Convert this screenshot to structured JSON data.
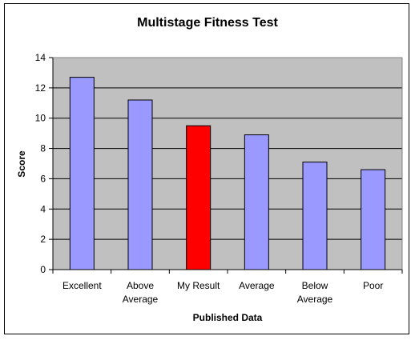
{
  "chart_data": {
    "type": "bar",
    "title": "Multistage Fitness Test",
    "xlabel": "Published Data",
    "ylabel": "Score",
    "ylim": [
      0,
      14
    ],
    "yticks": [
      0,
      2,
      4,
      6,
      8,
      10,
      12,
      14
    ],
    "grid": true,
    "legend": "none",
    "categories": [
      [
        "Excellent"
      ],
      [
        "Above",
        "Average"
      ],
      [
        "My Result"
      ],
      [
        "Average"
      ],
      [
        "Below",
        "Average"
      ],
      [
        "Poor"
      ]
    ],
    "values": [
      12.7,
      11.2,
      9.5,
      8.9,
      7.1,
      6.6
    ],
    "colors": {
      "bar": "#9999FF",
      "highlight": "#FF0000",
      "highlight_index": 2,
      "plot_background": "#C0C0C0"
    }
  }
}
